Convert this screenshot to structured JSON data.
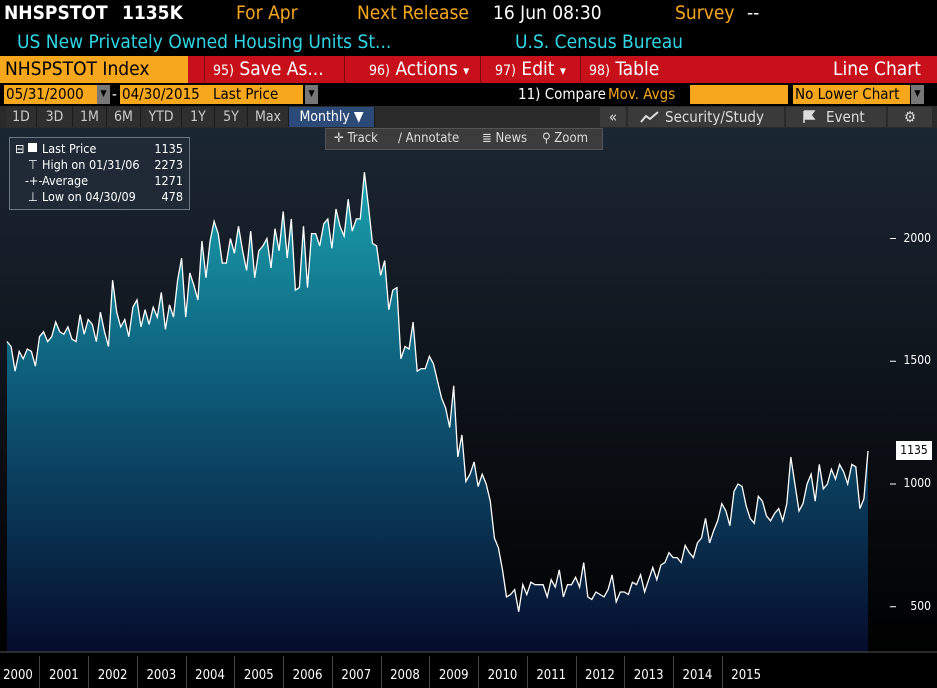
{
  "header": {
    "ticker": "NHSPSTOT",
    "last_value": "1135K",
    "period": "For Apr",
    "next_release_label": "Next Release",
    "next_release_value": "16 Jun 08:30",
    "survey_label": "Survey",
    "survey_value": "--",
    "description": "US New Privately Owned Housing Units St...",
    "source": "U.S. Census Bureau"
  },
  "menu": {
    "security": "NHSPSTOT Index",
    "items": [
      {
        "num": "95)",
        "label": "Save As..."
      },
      {
        "num": "96)",
        "label": "Actions",
        "caret": "▾"
      },
      {
        "num": "97)",
        "label": "Edit",
        "caret": "▾"
      },
      {
        "num": "98)",
        "label": "Table"
      }
    ],
    "chart_type": "Line Chart"
  },
  "dates": {
    "start": "05/31/2000",
    "separator": "-",
    "end": "04/30/2015",
    "field": "Last Price",
    "compare_num": "11)",
    "compare_label": "Compare",
    "compare_value": "Mov. Avgs",
    "lower_chart": "No Lower Chart"
  },
  "periods": [
    "1D",
    "3D",
    "1M",
    "6M",
    "YTD",
    "1Y",
    "5Y",
    "Max"
  ],
  "frequency": "Monthly ▼",
  "right_buttons": {
    "collapse": "«",
    "security_study": "Security/Study",
    "event": "Event",
    "settings": "⚙"
  },
  "tools": [
    "Track",
    "Annotate",
    "News",
    "Zoom"
  ],
  "legend": {
    "rows": [
      {
        "label": "Last Price",
        "value": "1135"
      },
      {
        "label": "High on 01/31/06",
        "value": "2273"
      },
      {
        "label": "Average",
        "value": "1271"
      },
      {
        "label": "Low on 04/30/09",
        "value": "478"
      }
    ]
  },
  "last_label": "1135",
  "colors": {
    "accent_orange": "#f7a71c",
    "menu_red": "#c8101a",
    "cyan_text": "#2fd6e6",
    "area_top": "#1a9aa8",
    "area_bottom": "#071030"
  },
  "chart_data": {
    "type": "area",
    "title": "",
    "xlabel": "",
    "ylabel": "",
    "ylim": [
      300,
      2400
    ],
    "yticks": [
      500,
      1000,
      1500,
      2000
    ],
    "x_labels": [
      "2000",
      "2001",
      "2002",
      "2003",
      "2004",
      "2005",
      "2006",
      "2007",
      "2008",
      "2009",
      "2010",
      "2011",
      "2012",
      "2013",
      "2014",
      "2015"
    ],
    "x_start": "2000-05",
    "x_end": "2015-04",
    "grid": false,
    "series": [
      {
        "name": "",
        "values": [
          1580,
          1560,
          1460,
          1540,
          1510,
          1550,
          1540,
          1480,
          1600,
          1620,
          1580,
          1600,
          1660,
          1620,
          1610,
          1640,
          1590,
          1580,
          1690,
          1610,
          1670,
          1650,
          1580,
          1700,
          1620,
          1560,
          1830,
          1700,
          1640,
          1670,
          1600,
          1720,
          1750,
          1640,
          1710,
          1650,
          1720,
          1680,
          1780,
          1630,
          1730,
          1680,
          1830,
          1920,
          1680,
          1860,
          1810,
          1750,
          1990,
          1840,
          1990,
          2070,
          2020,
          1900,
          1900,
          2000,
          1940,
          2050,
          1950,
          1870,
          2030,
          1840,
          1950,
          1970,
          2000,
          1880,
          2040,
          1950,
          2110,
          1920,
          2080,
          1790,
          1800,
          2050,
          1800,
          2020,
          2020,
          1970,
          2060,
          2080,
          1960,
          2120,
          2050,
          2010,
          2160,
          2030,
          2080,
          2080,
          2270,
          2130,
          1980,
          1970,
          1850,
          1910,
          1710,
          1790,
          1800,
          1510,
          1560,
          1550,
          1660,
          1460,
          1470,
          1470,
          1520,
          1490,
          1420,
          1350,
          1310,
          1230,
          1400,
          1110,
          1200,
          1010,
          1040,
          1090,
          990,
          1040,
          1000,
          930,
          780,
          740,
          650,
          540,
          550,
          570,
          480,
          590,
          550,
          600,
          590,
          590,
          590,
          540,
          610,
          580,
          650,
          540,
          590,
          590,
          620,
          580,
          680,
          540,
          530,
          560,
          550,
          540,
          570,
          630,
          520,
          560,
          560,
          550,
          600,
          590,
          630,
          560,
          610,
          660,
          610,
          670,
          680,
          720,
          700,
          700,
          680,
          750,
          720,
          700,
          760,
          780,
          860,
          760,
          810,
          850,
          920,
          890,
          830,
          970,
          1000,
          990,
          910,
          860,
          840,
          950,
          930,
          870,
          850,
          880,
          900,
          850,
          920,
          1110,
          1000,
          890,
          920,
          1000,
          1040,
          930,
          1080,
          980,
          1000,
          1060,
          1020,
          1080,
          1050,
          1000,
          1080,
          1070,
          900,
          940,
          1135
        ]
      }
    ]
  }
}
